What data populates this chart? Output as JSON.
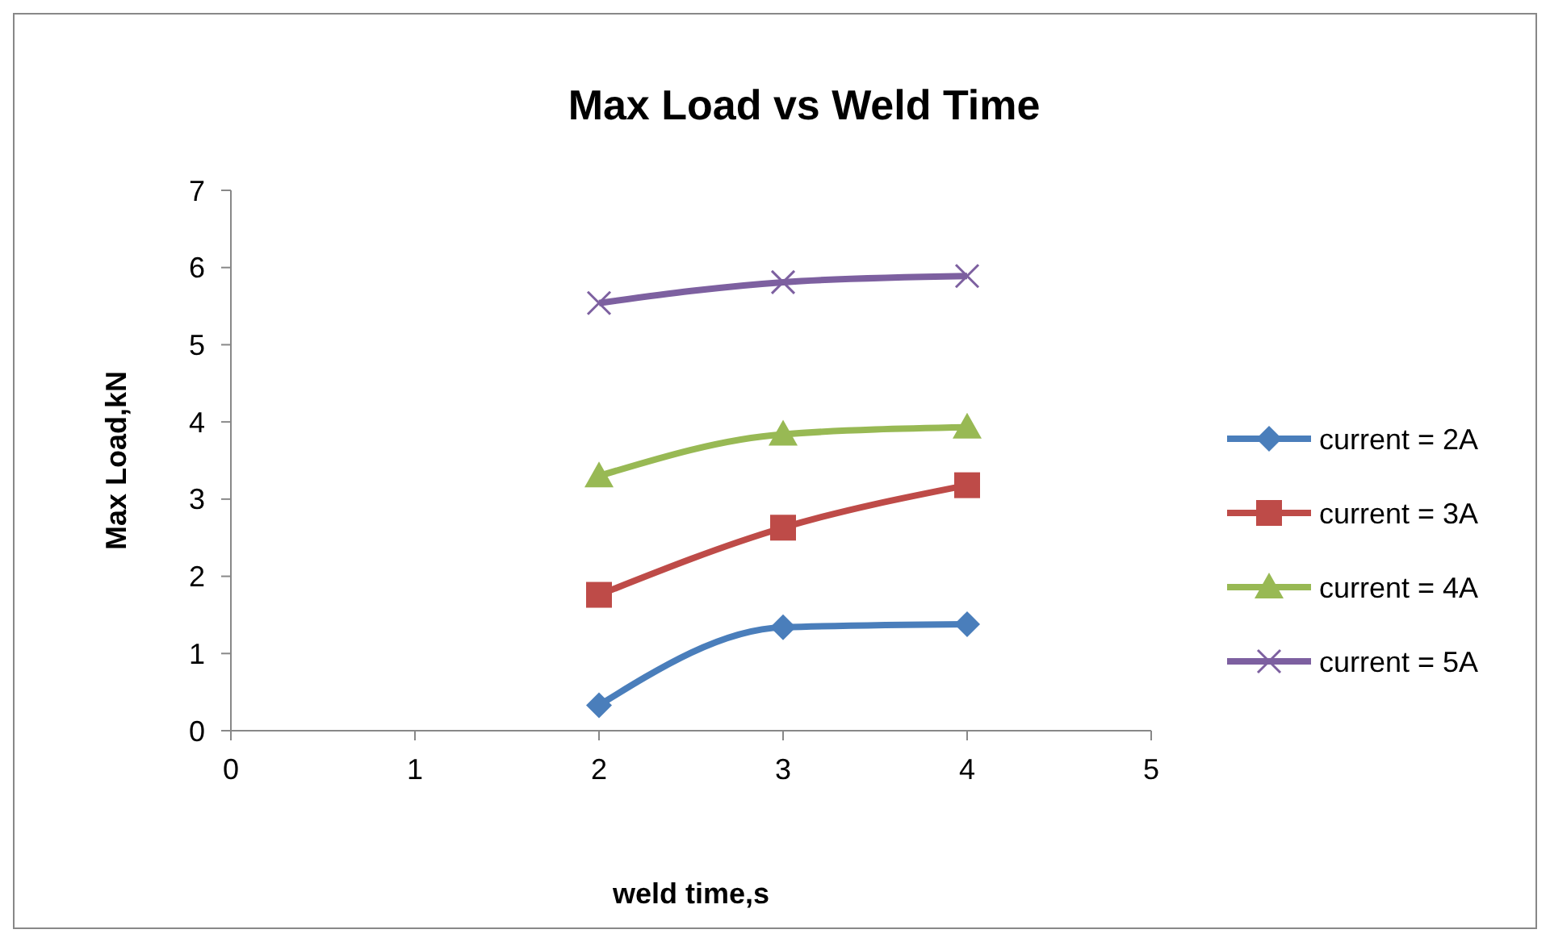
{
  "chart_data": {
    "type": "line",
    "title": "Max Load vs Weld Time",
    "xlabel": "weld time,s",
    "ylabel": "Max Load,kN",
    "x": [
      2,
      3,
      4
    ],
    "xlim": [
      0,
      5
    ],
    "xticks": [
      0,
      1,
      2,
      3,
      4,
      5
    ],
    "ylim": [
      0,
      7
    ],
    "yticks": [
      0,
      1,
      2,
      3,
      4,
      5,
      6,
      7
    ],
    "grid": false,
    "legend": "right",
    "series": [
      {
        "name": "current = 2A",
        "color": "#4a7ebb",
        "marker": "diamond",
        "values": [
          0.33,
          1.34,
          1.38
        ]
      },
      {
        "name": "current = 3A",
        "color": "#be4b48",
        "marker": "square",
        "values": [
          1.76,
          2.63,
          3.18
        ]
      },
      {
        "name": "current = 4A",
        "color": "#98b954",
        "marker": "triangle",
        "values": [
          3.3,
          3.84,
          3.93
        ]
      },
      {
        "name": "current = 5A",
        "color": "#7d60a0",
        "marker": "cross",
        "values": [
          5.54,
          5.81,
          5.89
        ]
      }
    ]
  }
}
